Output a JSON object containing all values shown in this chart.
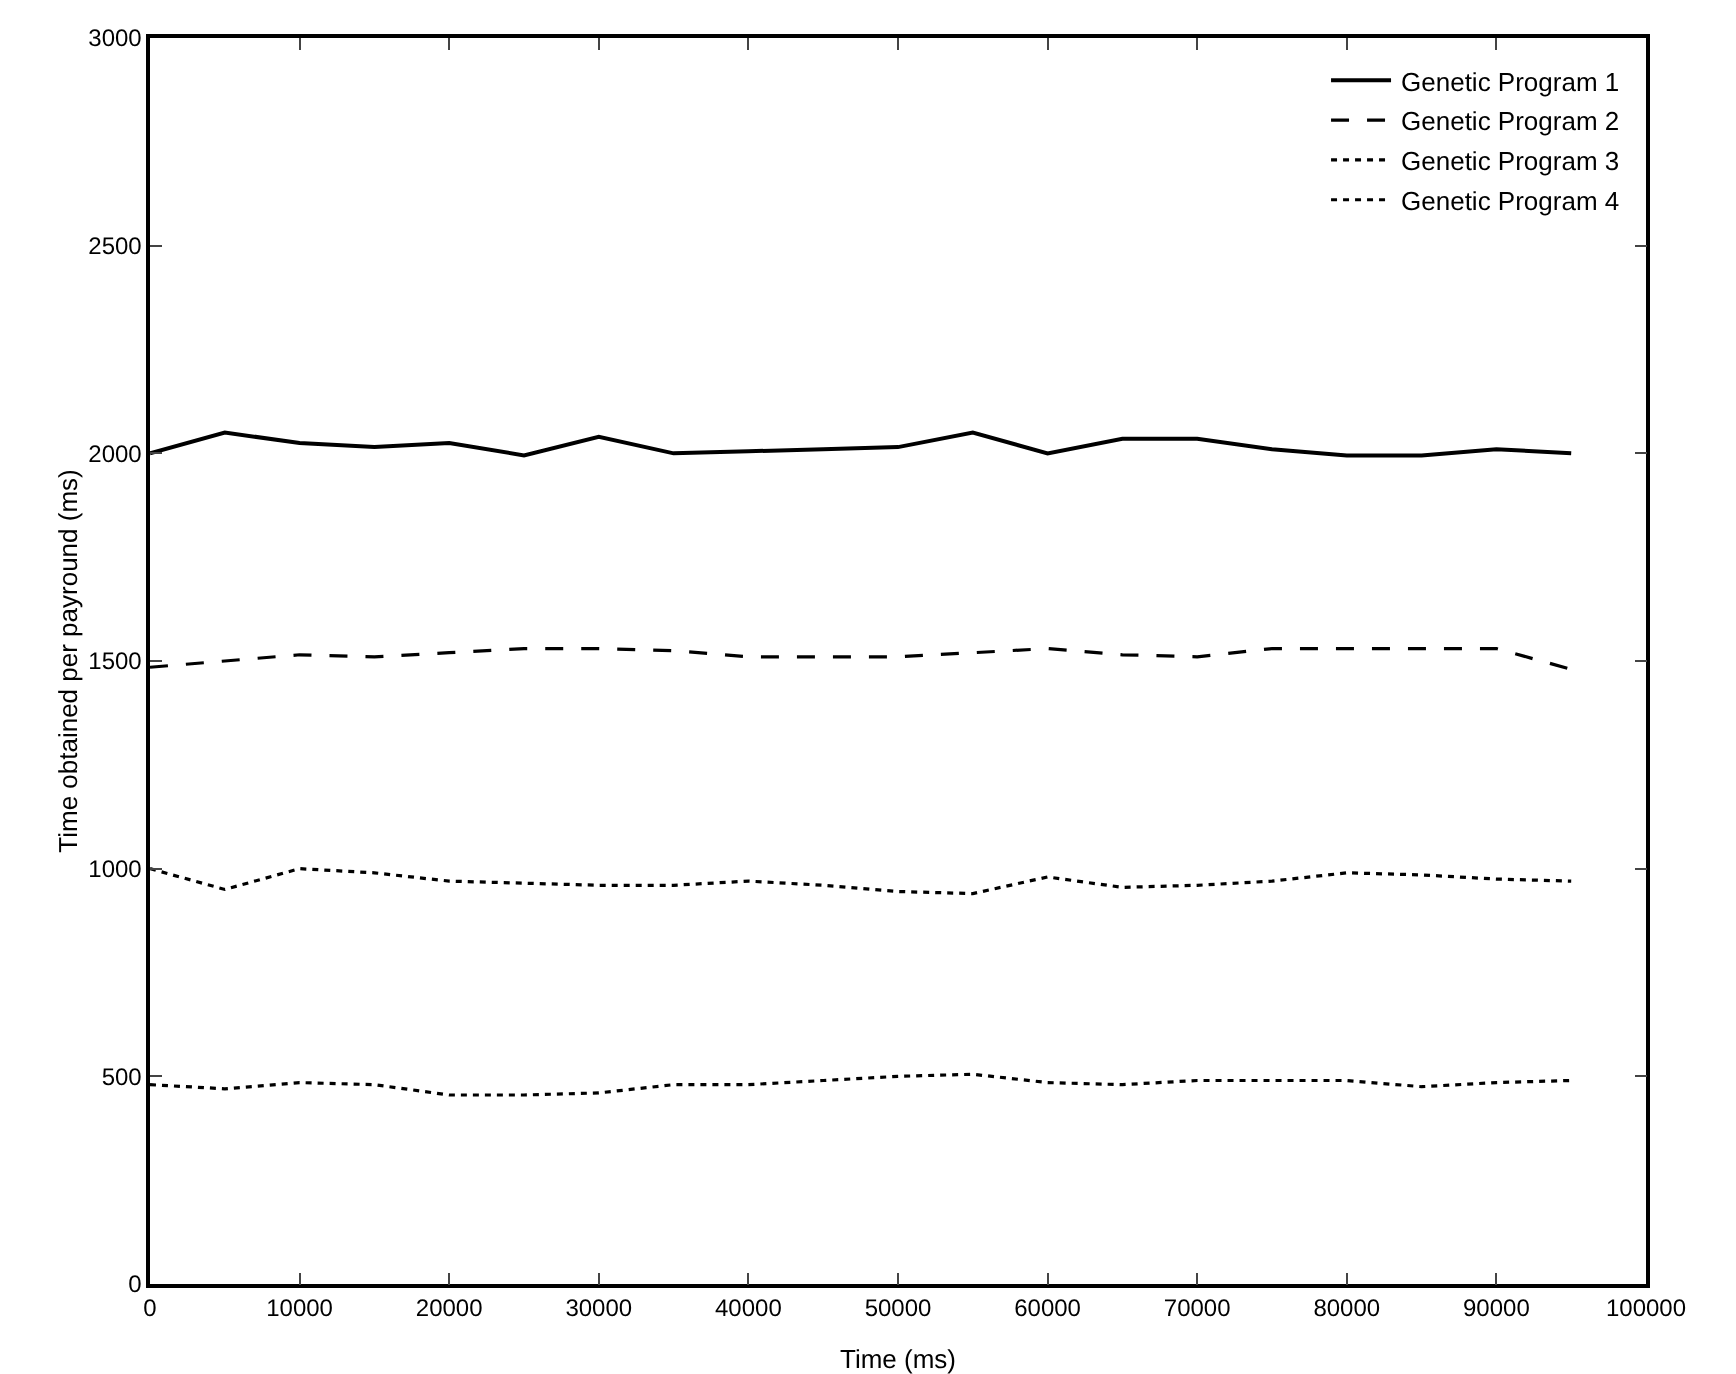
{
  "chart_data": {
    "type": "line",
    "xlabel": "Time (ms)",
    "ylabel": "Time obtained per payround (ms)",
    "x": [
      0,
      5000,
      10000,
      15000,
      20000,
      25000,
      30000,
      35000,
      40000,
      45000,
      50000,
      55000,
      60000,
      65000,
      70000,
      75000,
      80000,
      85000,
      90000,
      95000
    ],
    "series": [
      {
        "name": "Genetic Program 1",
        "color": "#000000",
        "line_style": "solid",
        "values": [
          2000,
          2050,
          2025,
          2015,
          2025,
          1995,
          2040,
          2000,
          2005,
          2010,
          2015,
          2050,
          2000,
          2035,
          2035,
          2010,
          1995,
          1995,
          2010,
          2000
        ]
      },
      {
        "name": "Genetic Program 2",
        "color": "#000000",
        "line_style": "dashed",
        "values": [
          1485,
          1500,
          1515,
          1510,
          1520,
          1530,
          1530,
          1525,
          1510,
          1510,
          1510,
          1520,
          1530,
          1515,
          1510,
          1530,
          1530,
          1530,
          1530,
          1480
        ]
      },
      {
        "name": "Genetic Program 3",
        "color": "#000000",
        "line_style": "dotted",
        "values": [
          1000,
          950,
          1000,
          990,
          970,
          965,
          960,
          960,
          970,
          960,
          945,
          940,
          980,
          955,
          960,
          970,
          990,
          985,
          975,
          970
        ]
      },
      {
        "name": "Genetic Program 4",
        "color": "#000000",
        "line_style": "dotted",
        "values": [
          480,
          470,
          485,
          480,
          455,
          455,
          460,
          480,
          480,
          490,
          500,
          505,
          485,
          480,
          490,
          490,
          490,
          475,
          485,
          490
        ]
      }
    ],
    "xlim": [
      0,
      100000
    ],
    "xticks": [
      0,
      10000,
      20000,
      30000,
      40000,
      50000,
      60000,
      70000,
      80000,
      90000,
      100000
    ],
    "ylim": [
      0,
      3000
    ],
    "yticks": [
      0,
      500,
      1000,
      1500,
      2000,
      2500,
      3000
    ],
    "grid": false,
    "legend": "top right",
    "marker": "none"
  }
}
